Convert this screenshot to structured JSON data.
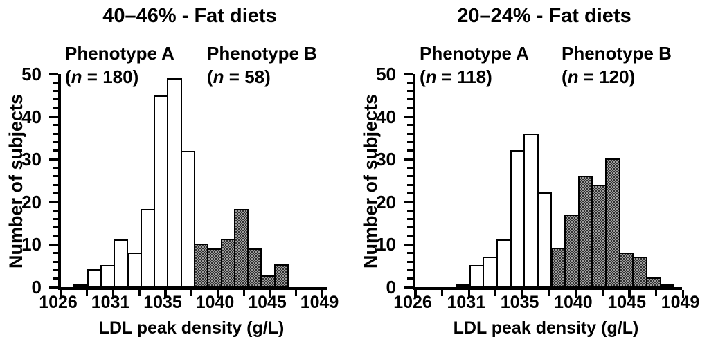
{
  "figure": {
    "y_axis_label": "Number of subjects",
    "x_axis_label": "LDL peak density (g/L)",
    "background": "#ffffff",
    "colors": {
      "text": "#000000",
      "bar_outline": "#000000",
      "phenotype_a_fill": "#ffffff",
      "phenotype_b_hatch_dark": "#2f2f2f",
      "phenotype_b_hatch_light": "#9d9d9d"
    }
  },
  "charts": [
    {
      "title": "40–46% - Fat diets",
      "groups": [
        {
          "label": "Phenotype A",
          "open_paren": "(",
          "n_symbol": "n",
          "n_rest": " = 180)"
        },
        {
          "label": "Phenotype B",
          "open_paren": "(",
          "n_symbol": "n",
          "n_rest": " = 58)"
        }
      ]
    },
    {
      "title": "20–24% - Fat diets",
      "groups": [
        {
          "label": "Phenotype A",
          "open_paren": "(",
          "n_symbol": "n",
          "n_rest": " = 118)"
        },
        {
          "label": "Phenotype B",
          "open_paren": "(",
          "n_symbol": "n",
          "n_rest": " = 120)"
        }
      ]
    }
  ],
  "chart_data": [
    {
      "type": "bar",
      "subtype": "histogram",
      "title": "40–46% - Fat diets",
      "xlabel": "LDL peak density (g/L)",
      "ylabel": "Number of subjects",
      "ylim": [
        0,
        50
      ],
      "y_tick_labels": [
        "0",
        "10",
        "20",
        "30",
        "40",
        "50"
      ],
      "y_minor_tick_step": 2,
      "x_tick_labels": [
        "1026",
        "1031",
        "1035",
        "1040",
        "1045",
        "1049"
      ],
      "x_minor_ticks_between_majors": 1,
      "grid": "off",
      "legend_position": "top-inside",
      "bins_contiguous": true,
      "bin_start_slot": 1,
      "series": [
        {
          "name": "Phenotype A",
          "n": 180,
          "fill": "open-white",
          "values": [
            0.7,
            4.3,
            5.2,
            11.2,
            8.2,
            18.3,
            45,
            49,
            32
          ]
        },
        {
          "name": "Phenotype B",
          "n": 58,
          "fill": "hatched-gray",
          "values": [
            10.2,
            9.1,
            11.3,
            18.3,
            9.1,
            2.8,
            5.3
          ]
        }
      ]
    },
    {
      "type": "bar",
      "subtype": "histogram",
      "title": "20–24% - Fat diets",
      "xlabel": "LDL peak density (g/L)",
      "ylabel": "Number of subjects",
      "ylim": [
        0,
        50
      ],
      "y_tick_labels": [
        "0",
        "10",
        "20",
        "30",
        "40",
        "50"
      ],
      "y_minor_tick_step": 2,
      "x_tick_labels": [
        "1026",
        "1031",
        "1035",
        "1040",
        "1045",
        "1049"
      ],
      "x_minor_ticks_between_majors": 1,
      "grid": "off",
      "legend_position": "top-inside",
      "bins_contiguous": true,
      "bin_start_slot": 3,
      "series": [
        {
          "name": "Phenotype A",
          "n": 118,
          "fill": "open-white",
          "values": [
            0.7,
            5.2,
            7.1,
            11.2,
            32.2,
            36,
            22.2
          ]
        },
        {
          "name": "Phenotype B",
          "n": 120,
          "fill": "hatched-gray",
          "values": [
            9.2,
            17.1,
            26.2,
            24.1,
            30.2,
            8.1,
            7.2,
            2.2,
            0.7
          ]
        }
      ]
    }
  ]
}
